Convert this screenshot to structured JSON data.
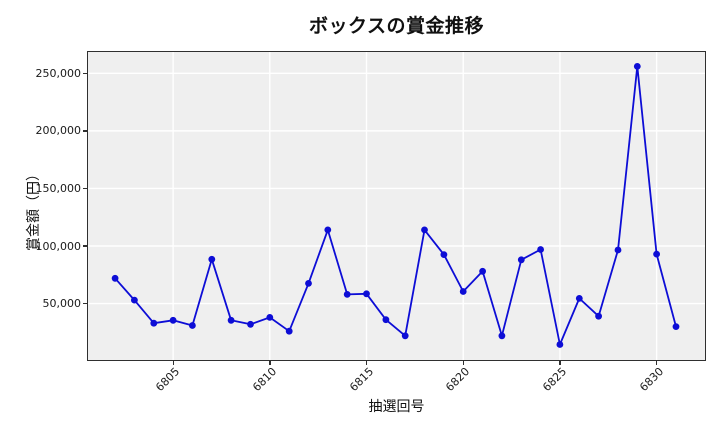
{
  "chart_data": {
    "type": "line",
    "title": "ボックスの賞金推移",
    "xlabel": "抽選回号",
    "ylabel": "賞金額（円）",
    "x": [
      6802,
      6803,
      6804,
      6805,
      6806,
      6807,
      6808,
      6809,
      6810,
      6811,
      6812,
      6813,
      6814,
      6815,
      6816,
      6817,
      6818,
      6819,
      6820,
      6821,
      6822,
      6823,
      6824,
      6825,
      6826,
      6827,
      6828,
      6829,
      6830,
      6831
    ],
    "values": [
      72000,
      53000,
      33000,
      35500,
      31000,
      88500,
      35500,
      32000,
      38000,
      26000,
      67500,
      114000,
      58000,
      58500,
      36000,
      22000,
      114000,
      92500,
      60500,
      78000,
      22000,
      88000,
      97000,
      14500,
      54500,
      39000,
      96500,
      256000,
      93000,
      30000
    ],
    "xticks": [
      6805,
      6810,
      6815,
      6820,
      6825,
      6830
    ],
    "xtick_labels": [
      "6805",
      "6810",
      "6815",
      "6820",
      "6825",
      "6830"
    ],
    "yticks": [
      50000,
      100000,
      150000,
      200000,
      250000
    ],
    "ytick_labels": [
      "50,000",
      "100,000",
      "150,000",
      "200,000",
      "250,000"
    ],
    "xlim": [
      6800.6,
      6832.5
    ],
    "ylim": [
      1000,
      268500
    ],
    "grid": true,
    "legend": false,
    "colors": {
      "line": "#0d0dd6",
      "marker": "#0d0dd6",
      "plot_bg": "#efefef",
      "grid": "#ffffff",
      "spine": "#2f2f2f",
      "text": "#1a1a1a"
    }
  }
}
